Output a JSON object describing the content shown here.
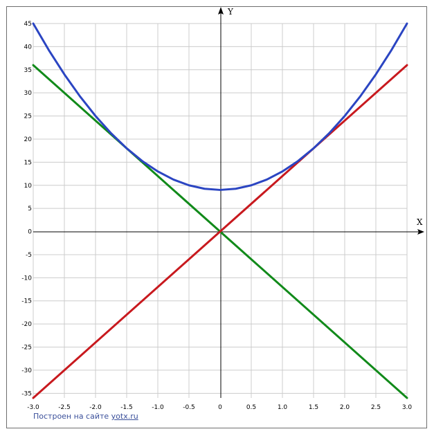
{
  "chart_data": {
    "type": "line",
    "xlabel": "X",
    "ylabel": "Y",
    "xlim": [
      -3.0,
      3.0
    ],
    "ylim": [
      -36,
      45
    ],
    "grid": true,
    "x_ticks": [
      "-3.0",
      "-2.5",
      "-2.0",
      "-1.5",
      "-1.0",
      "-0.5",
      "0",
      "0.5",
      "1.0",
      "1.5",
      "2.0",
      "2.5",
      "3.0"
    ],
    "y_ticks": [
      "45",
      "40",
      "35",
      "30",
      "25",
      "20",
      "15",
      "10",
      "5",
      "0",
      "-5",
      "-10",
      "-15",
      "-20",
      "-25",
      "-30",
      "-35"
    ],
    "colors": {
      "grid": "#cccccc",
      "axis": "#000000"
    },
    "series": [
      {
        "color": "#2b45c2",
        "x": [
          -3.0,
          -2.75,
          -2.5,
          -2.25,
          -2.0,
          -1.75,
          -1.5,
          -1.25,
          -1.0,
          -0.75,
          -0.5,
          -0.25,
          0.0,
          0.25,
          0.5,
          0.75,
          1.0,
          1.25,
          1.5,
          1.75,
          2.0,
          2.25,
          2.5,
          2.75,
          3.0
        ],
        "y": [
          45,
          39.25,
          34,
          29.25,
          25,
          21.25,
          18,
          15.25,
          13,
          11.25,
          10,
          9.25,
          9,
          9.25,
          10,
          11.25,
          13,
          15.25,
          18,
          21.25,
          25,
          29.25,
          34,
          39.25,
          45
        ]
      },
      {
        "color": "#c8191e",
        "x": [
          -3.0,
          3.0
        ],
        "y": [
          -36,
          36
        ]
      },
      {
        "color": "#118a1a",
        "x": [
          -3.0,
          3.0
        ],
        "y": [
          36,
          -36
        ]
      }
    ]
  },
  "footer": {
    "credit_prefix": "Построен на сайте",
    "credit_link": "yotx.ru"
  }
}
